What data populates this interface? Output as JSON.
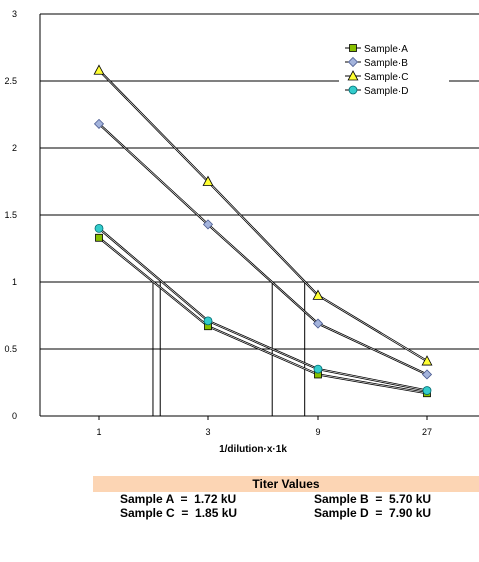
{
  "chart_data": {
    "type": "line",
    "categories": [
      "1",
      "3",
      "9",
      "27"
    ],
    "x": [
      1,
      3,
      9,
      27
    ],
    "xscale": "log",
    "xlabel": "1/dilution·x·1k",
    "ylabel": "",
    "ylim": [
      0,
      3
    ],
    "yticks": [
      "0",
      "0.5",
      "1",
      "1.5",
      "2",
      "2.5",
      "3"
    ],
    "grid": "horizontal",
    "legend_position": "top-right",
    "series": [
      {
        "name": "Sample·A",
        "values": [
          1.33,
          0.67,
          0.31,
          0.17
        ],
        "marker": "square",
        "color": "#88c000"
      },
      {
        "name": "Sample·B",
        "values": [
          2.18,
          1.43,
          0.69,
          0.31
        ],
        "marker": "diamond",
        "color": "#a4b4dc"
      },
      {
        "name": "Sample·C",
        "values": [
          2.58,
          1.75,
          0.9,
          0.41
        ],
        "marker": "triangle",
        "color": "#ffff33"
      },
      {
        "name": "Sample·D",
        "values": [
          1.4,
          0.71,
          0.35,
          0.19
        ],
        "marker": "circle",
        "color": "#33cccc"
      }
    ],
    "titer_lines_x": [
      1.72,
      1.85,
      5.7,
      7.9
    ]
  },
  "titer": {
    "title": "Titer Values",
    "rows": [
      [
        "Sample A  =  1.72 kU",
        "Sample B  =  5.70 kU"
      ],
      [
        "Sample C  =  1.85 kU",
        "Sample D  =  7.90 kU"
      ]
    ],
    "header_color": "#fcd5b4"
  }
}
